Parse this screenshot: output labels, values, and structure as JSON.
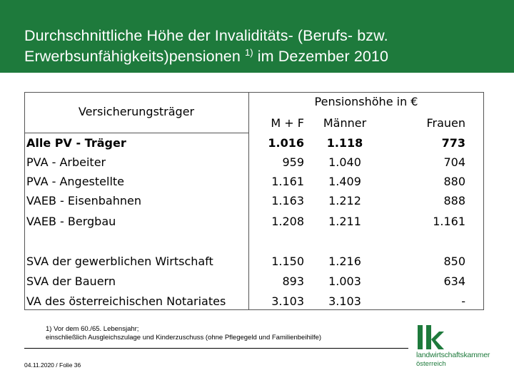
{
  "header": {
    "title_line1": "Durchschnittliche Höhe der Invaliditäts- (Berufs- bzw.",
    "title_line2_pre": "Erwerbsunfähigkeits)pensionen ",
    "title_sup": "1)",
    "title_line2_post": " im Dezember 2010",
    "bg_color": "#1e7a3c"
  },
  "table": {
    "left_header": "Versicherungsträger",
    "right_header": "Pensionshöhe in €",
    "columns": [
      "M + F",
      "Männer",
      "Frauen"
    ],
    "rows": [
      {
        "label": "Alle PV - Träger",
        "mf": "1.016",
        "m": "1.118",
        "f": "773",
        "bold": true
      },
      {
        "label": "PVA - Arbeiter",
        "mf": "959",
        "m": "1.040",
        "f": "704"
      },
      {
        "label": "PVA - Angestellte",
        "mf": "1.161",
        "m": "1.409",
        "f": "880"
      },
      {
        "label": "VAEB - Eisenbahnen",
        "mf": "1.163",
        "m": "1.212",
        "f": "888"
      },
      {
        "label": "VAEB - Bergbau",
        "mf": "1.208",
        "m": "1.211",
        "f": "1.161"
      },
      {
        "label": "SVA der gewerblichen Wirtschaft",
        "mf": "1.150",
        "m": "1.216",
        "f": "850"
      },
      {
        "label": "SVA der Bauern",
        "mf": "893",
        "m": "1.003",
        "f": "634"
      },
      {
        "label": "VA des österreichischen Notariates",
        "mf": "3.103",
        "m": "3.103",
        "f": "-"
      }
    ]
  },
  "footnote": {
    "line1": "1) Vor dem 60./65. Lebensjahr;",
    "line2": "einschließlich Ausgleichszulage und Kinderzuschuss (ohne Pflegegeld und Familienbeihilfe)"
  },
  "footer": {
    "text": "04.11.2020 / Folie 36"
  },
  "logo": {
    "mark": "lk",
    "name": "landwirtschaftskammer",
    "sub": "österreich",
    "color": "#1e7a3c"
  }
}
